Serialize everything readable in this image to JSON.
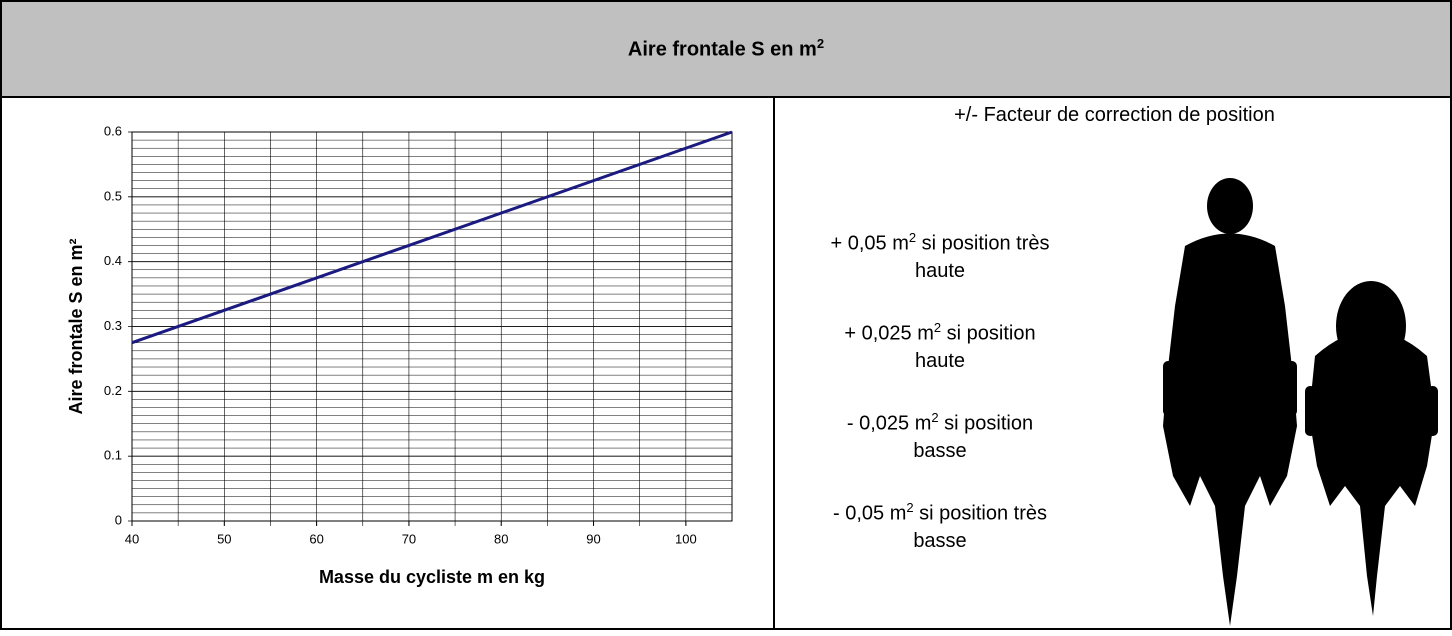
{
  "header": {
    "title": {
      "text": "Aire frontale S en m",
      "sup": "2"
    }
  },
  "chart_data": {
    "type": "line",
    "x_label": "Masse du cycliste m en kg",
    "y_label": "Aire frontale S en m²",
    "x": [
      40,
      105
    ],
    "values": [
      0.275,
      0.6
    ],
    "color": "#1a1a80",
    "xlim": [
      40,
      105
    ],
    "xticks": [
      40,
      50,
      60,
      70,
      80,
      90,
      100
    ],
    "ylim": [
      0,
      0.6
    ],
    "yticks": [
      0,
      0.1,
      0.2,
      0.3,
      0.4,
      0.5,
      0.6
    ],
    "grid": true,
    "minor_grid": {
      "x": 5,
      "y": 0.0125
    }
  },
  "correction": {
    "heading": "+/- Facteur de correction de position",
    "items": [
      {
        "before": "+ 0,05 m",
        "sup": "2",
        "after": " si position très",
        "line2": "haute"
      },
      {
        "before": "+ 0,025 m",
        "sup": "2",
        "after": " si position",
        "line2": "haute"
      },
      {
        "before": "- 0,025 m",
        "sup": "2",
        "after": " si position",
        "line2": "basse"
      },
      {
        "before": "- 0,05 m",
        "sup": "2",
        "after": " si position très",
        "line2": "basse"
      }
    ]
  }
}
